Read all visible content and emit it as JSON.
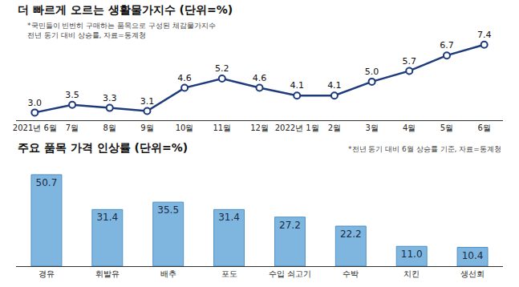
{
  "chart_data": [
    {
      "type": "line",
      "title": "더 빠르게 오르는 생활물가지수 (단위=%)",
      "annotations": [
        "*국민들이 빈번히 구매하는 품목으로 구성된 체감물가지수",
        "전년 동기 대비 상승률, 자료=통계청"
      ],
      "categories": [
        "2021년 6월",
        "7월",
        "8월",
        "9월",
        "10월",
        "11월",
        "12월",
        "2022년 1월",
        "2월",
        "3월",
        "4월",
        "5월",
        "6월"
      ],
      "values": [
        3.0,
        3.5,
        3.3,
        3.1,
        4.6,
        5.2,
        4.6,
        4.1,
        4.1,
        5.0,
        5.7,
        6.7,
        7.4
      ],
      "value_labels": [
        "3.0",
        "3.5",
        "3.3",
        "3.1",
        "4.6",
        "5.2",
        "4.6",
        "4.1",
        "4.1",
        "5.0",
        "5.7",
        "6.7",
        "7.4"
      ],
      "color": "#1d3b7a",
      "marker": "circle",
      "data_labels": true,
      "tick_labels": "x",
      "grid": false,
      "ylim": [
        2.5,
        7.8
      ]
    },
    {
      "type": "bar",
      "title": "주요 품목 가격 인상률 (단위=%)",
      "annotations": [
        "*전년 동기 대비 6월 상승률 기준, 자료=통계청"
      ],
      "categories": [
        "경유",
        "휘발유",
        "배추",
        "포도",
        "수입 쇠고기",
        "수박",
        "치킨",
        "생선회"
      ],
      "values": [
        50.7,
        31.4,
        35.5,
        31.4,
        27.2,
        22.2,
        11.0,
        10.4
      ],
      "value_labels": [
        "50.7",
        "31.4",
        "35.5",
        "31.4",
        "27.2",
        "22.2",
        "11.0",
        "10.4"
      ],
      "color": "#7fb6df",
      "data_labels": true,
      "tick_labels": "x",
      "grid": false,
      "ylim": [
        0,
        56
      ]
    }
  ]
}
